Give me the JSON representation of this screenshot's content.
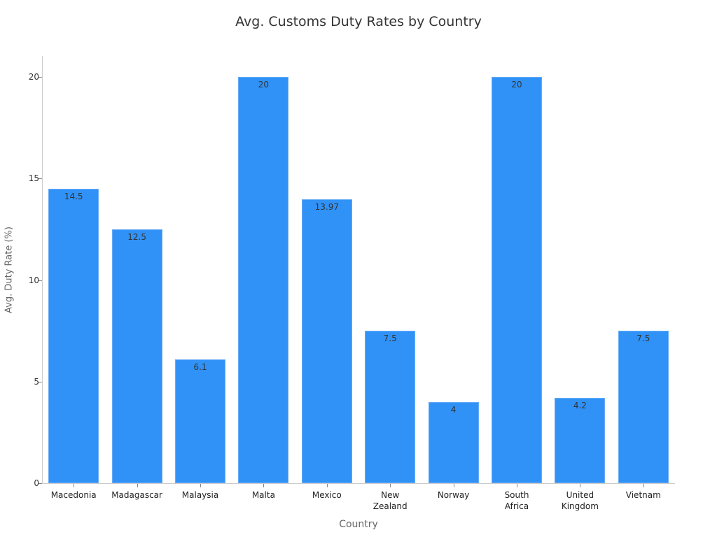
{
  "chart_data": {
    "type": "bar",
    "title": "Avg. Customs Duty Rates by Country",
    "xlabel": "Country",
    "ylabel": "Avg. Duty Rate (%)",
    "ylim": [
      0,
      21
    ],
    "yticks": [
      0,
      5,
      10,
      15,
      20
    ],
    "grid": false,
    "legend": null,
    "categories": [
      "Macedonia",
      "Madagascar",
      "Malaysia",
      "Malta",
      "Mexico",
      "New Zealand",
      "Norway",
      "South Africa",
      "United Kingdom",
      "Vietnam"
    ],
    "category_display": [
      "Macedonia",
      "Madagascar",
      "Malaysia",
      "Malta",
      "Mexico",
      "New\nZealand",
      "Norway",
      "South\nAfrica",
      "United\nKingdom",
      "Vietnam"
    ],
    "values": [
      14.5,
      12.5,
      6.1,
      20,
      13.97,
      7.5,
      4,
      20,
      4.2,
      7.5
    ],
    "data_labels": [
      "14.5",
      "12.5",
      "6.1",
      "20",
      "13.97",
      "7.5",
      "4",
      "20",
      "4.2",
      "7.5"
    ],
    "colors": {
      "bar": "#3092f7",
      "bar_border": "#67acf6"
    }
  }
}
